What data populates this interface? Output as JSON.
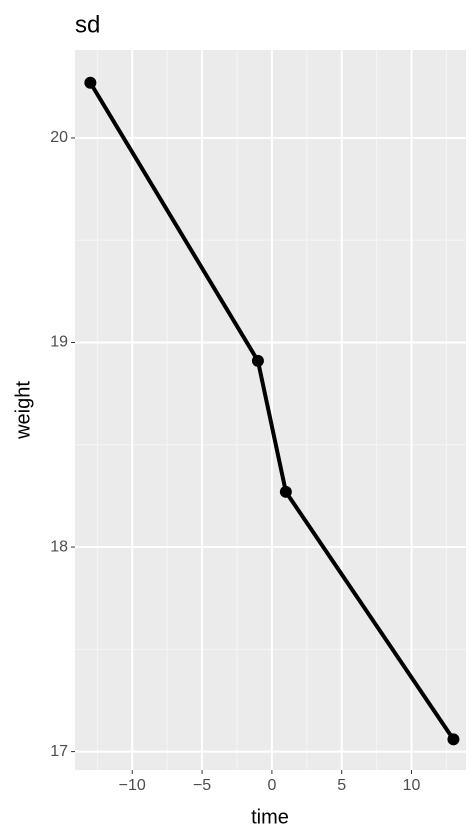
{
  "chart_data": {
    "type": "line",
    "title": "sd",
    "x_label": "time",
    "y_label": "weight",
    "x": [
      -13,
      -1,
      1,
      13
    ],
    "series": [
      {
        "color": "#000000",
        "values": [
          20.27,
          18.91,
          18.27,
          17.06
        ]
      }
    ],
    "xlim": [
      -14.1,
      13.9
    ],
    "ylim": [
      16.91,
      20.43
    ],
    "xticks": [
      {
        "value": -10,
        "label": "−10"
      },
      {
        "value": -5,
        "label": "−5"
      },
      0,
      5,
      10
    ],
    "yticks": [
      17,
      18,
      19,
      20
    ],
    "x_minor_ticks": [
      -12.5,
      -7.5,
      -2.5,
      2.5,
      7.5,
      12.5
    ],
    "y_minor_ticks": [
      17.5,
      18.5,
      19.5
    ],
    "grid": true
  }
}
